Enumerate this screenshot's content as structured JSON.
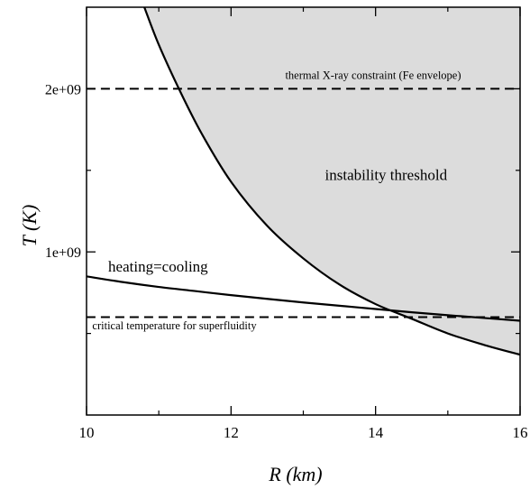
{
  "chart_data": {
    "type": "line",
    "title": "",
    "xlabel": "R (km)",
    "ylabel": "T (K)",
    "xlim": [
      10,
      16
    ],
    "ylim": [
      0,
      2500000000
    ],
    "x_ticks": [
      {
        "value": 10,
        "label": "10"
      },
      {
        "value": 12,
        "label": "12"
      },
      {
        "value": 14,
        "label": "14"
      },
      {
        "value": 16,
        "label": "16"
      }
    ],
    "y_ticks": [
      {
        "value": 1000000000,
        "label": "1e+09"
      },
      {
        "value": 2000000000,
        "label": "2e+09"
      }
    ],
    "grid": false,
    "legend": "none",
    "series": [
      {
        "name": "instability threshold",
        "style": "solid",
        "shaded_region": "above",
        "shade_color": "#dcdcdc",
        "x": [
          10.8,
          11.0,
          11.3,
          11.6,
          12.0,
          12.5,
          13.0,
          13.5,
          14.0,
          14.5,
          15.0,
          15.5,
          16.0
        ],
        "y": [
          2500000000,
          2270000000,
          1980000000,
          1720000000,
          1430000000,
          1160000000,
          960000000,
          800000000,
          680000000,
          590000000,
          500000000,
          430000000,
          370000000
        ]
      },
      {
        "name": "heating=cooling",
        "style": "solid",
        "x": [
          10.0,
          10.5,
          11.0,
          11.5,
          12.0,
          12.5,
          13.0,
          13.5,
          14.0,
          14.5,
          15.0,
          15.5,
          16.0
        ],
        "y": [
          850000000,
          815000000,
          785000000,
          760000000,
          735000000,
          712000000,
          690000000,
          670000000,
          650000000,
          630000000,
          612000000,
          595000000,
          578000000
        ]
      },
      {
        "name": "thermal X-ray constraint (Fe envelope)",
        "style": "dashed",
        "x": [
          10.0,
          16.0
        ],
        "y": [
          2000000000,
          2000000000
        ]
      },
      {
        "name": "critical temperature for superfluidity",
        "style": "dashed",
        "x": [
          10.0,
          16.0
        ],
        "y": [
          600000000,
          600000000
        ]
      }
    ],
    "annotations": [
      {
        "text": "instability threshold",
        "x": 13.3,
        "y": 1440000000,
        "size": "large"
      },
      {
        "text": "heating=cooling",
        "x": 10.3,
        "y": 880000000,
        "size": "large"
      },
      {
        "text": "thermal X-ray constraint (Fe envelope)",
        "x": 12.75,
        "y": 2060000000,
        "size": "small"
      },
      {
        "text": "critical temperature for superfluidity",
        "x": 10.08,
        "y": 525000000,
        "size": "small"
      }
    ]
  }
}
